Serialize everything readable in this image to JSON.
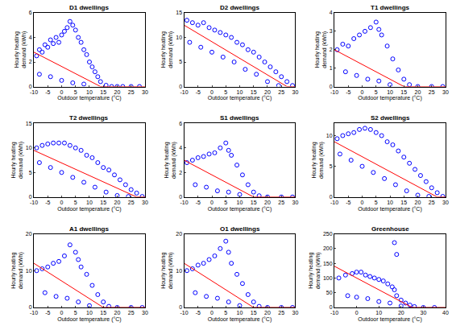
{
  "chart_data": [
    {
      "type": "scatter",
      "title": "D1 dwellings",
      "x_label": "Outdoor temperature (°C)",
      "y_label": "Hourly heating demand (kWh)",
      "xlim": [
        -10,
        30
      ],
      "xticks": [
        -10,
        -5,
        0,
        5,
        10,
        15,
        20,
        25,
        30
      ],
      "ylim": [
        0,
        6
      ],
      "yticks": [
        0,
        2,
        4,
        6
      ],
      "grid": false,
      "series": [
        {
          "type": "scatter",
          "marker": "circle-open",
          "color": "#0000ff",
          "x": [
            -9,
            -8,
            -7,
            -6,
            -5,
            -4,
            -3,
            -2,
            -1,
            0,
            1,
            2,
            3,
            4,
            5,
            6,
            7,
            8,
            9,
            10,
            11,
            12,
            13,
            14,
            16,
            18,
            20,
            22,
            25,
            28,
            -8,
            -4,
            0,
            4,
            8
          ],
          "values": [
            2.5,
            3,
            2.8,
            3.4,
            3.2,
            3.8,
            3.5,
            4,
            3.6,
            4.2,
            4.5,
            4.8,
            5.3,
            5,
            4.6,
            4,
            3.6,
            3,
            2.6,
            2,
            1.6,
            1.2,
            0.8,
            0.4,
            0.1,
            0,
            0,
            0,
            0,
            0,
            1,
            0.8,
            0.5,
            0.3,
            0.2
          ]
        },
        {
          "type": "line",
          "line_style": "solid",
          "color": "#ff0000",
          "x": [
            -10,
            14,
            30
          ],
          "values": [
            2.8,
            0,
            0
          ]
        }
      ]
    },
    {
      "type": "scatter",
      "title": "D2 dwellings",
      "x_label": "Outdoor temperature (°C)",
      "y_label": "Hourly heating demand (kWh)",
      "xlim": [
        -10,
        30
      ],
      "xticks": [
        -10,
        -5,
        0,
        5,
        10,
        15,
        20,
        25,
        30
      ],
      "ylim": [
        0,
        15
      ],
      "yticks": [
        0,
        5,
        10,
        15
      ],
      "grid": false,
      "series": [
        {
          "type": "scatter",
          "marker": "circle-open",
          "color": "#0000ff",
          "x": [
            -9,
            -7,
            -5,
            -3,
            -1,
            1,
            3,
            5,
            7,
            9,
            11,
            13,
            15,
            17,
            19,
            21,
            23,
            25,
            27,
            29,
            -8,
            -4,
            0,
            4,
            8,
            12,
            16,
            20,
            24
          ],
          "values": [
            13.5,
            13,
            12.5,
            13,
            12,
            11.5,
            11,
            10.5,
            10,
            9,
            8.5,
            7.5,
            7,
            6,
            5,
            4,
            3,
            2,
            1,
            0.2,
            9,
            8,
            7,
            6,
            5,
            3.5,
            2.5,
            1,
            0.2
          ]
        },
        {
          "type": "line",
          "line_style": "solid",
          "color": "#ff0000",
          "x": [
            -10,
            27,
            30
          ],
          "values": [
            12.5,
            0,
            0
          ]
        }
      ]
    },
    {
      "type": "scatter",
      "title": "T1 dwellings",
      "x_label": "Outdoor temperature (°C)",
      "y_label": "Hourly heating demand (kWh)",
      "xlim": [
        -10,
        30
      ],
      "xticks": [
        -10,
        -5,
        0,
        5,
        10,
        15,
        20,
        25,
        30
      ],
      "ylim": [
        0,
        4
      ],
      "yticks": [
        0,
        1,
        2,
        3,
        4
      ],
      "grid": false,
      "series": [
        {
          "type": "scatter",
          "marker": "circle-open",
          "color": "#0000ff",
          "x": [
            -9,
            -7,
            -5,
            -3,
            -1,
            1,
            3,
            5,
            6,
            7,
            9,
            11,
            13,
            15,
            17,
            20,
            25,
            29,
            -6,
            -2,
            2,
            6,
            10
          ],
          "values": [
            2,
            2.3,
            2.2,
            2.6,
            2.8,
            3,
            3.2,
            3.5,
            3.1,
            2.8,
            2.2,
            1.5,
            0.9,
            0.4,
            0.1,
            0,
            0,
            0,
            0.8,
            0.6,
            0.4,
            0.3,
            0.1
          ]
        },
        {
          "type": "line",
          "line_style": "solid",
          "color": "#ff0000",
          "x": [
            -10,
            15,
            30
          ],
          "values": [
            2,
            0,
            0
          ]
        }
      ]
    },
    {
      "type": "scatter",
      "title": "T2 dwellings",
      "x_label": "Outdoor temperature (°C)",
      "y_label": "Hourly heating demand (kWh)",
      "xlim": [
        -10,
        30
      ],
      "xticks": [
        -10,
        -5,
        0,
        5,
        10,
        15,
        20,
        25,
        30
      ],
      "ylim": [
        0,
        15
      ],
      "yticks": [
        0,
        5,
        10,
        15
      ],
      "grid": false,
      "series": [
        {
          "type": "scatter",
          "marker": "circle-open",
          "color": "#0000ff",
          "x": [
            -9,
            -7,
            -5,
            -3,
            -1,
            1,
            3,
            5,
            7,
            9,
            11,
            13,
            15,
            17,
            19,
            21,
            23,
            25,
            27,
            29,
            -8,
            -4,
            0,
            4,
            8,
            12,
            16,
            20,
            24
          ],
          "values": [
            10,
            10.5,
            10.8,
            11,
            11,
            11,
            10.5,
            10,
            9.5,
            8.5,
            8,
            7,
            6,
            5.5,
            4.5,
            3.5,
            2.5,
            1.5,
            0.8,
            0.1,
            7,
            6,
            5,
            4,
            3,
            2,
            1,
            0.3,
            0.1
          ]
        },
        {
          "type": "line",
          "line_style": "solid",
          "color": "#ff0000",
          "x": [
            -10,
            27,
            30
          ],
          "values": [
            9.5,
            0,
            0
          ]
        }
      ]
    },
    {
      "type": "scatter",
      "title": "S1 dwellings",
      "x_label": "Outdoor temperature (°C)",
      "y_label": "Hourly heating demand (kWh)",
      "xlim": [
        -10,
        30
      ],
      "xticks": [
        -10,
        -5,
        0,
        5,
        10,
        15,
        20,
        25,
        30
      ],
      "ylim": [
        0,
        6
      ],
      "yticks": [
        0,
        2,
        4,
        6
      ],
      "grid": false,
      "series": [
        {
          "type": "scatter",
          "marker": "circle-open",
          "color": "#0000ff",
          "x": [
            -9,
            -7,
            -5,
            -3,
            -1,
            1,
            3,
            5,
            6,
            7,
            9,
            11,
            13,
            15,
            17,
            20,
            25,
            29,
            -6,
            -2,
            2,
            6,
            10
          ],
          "values": [
            2.8,
            3,
            3.2,
            3.3,
            3.5,
            3.6,
            4,
            4.4,
            3.8,
            3.4,
            2.6,
            1.8,
            1,
            0.4,
            0.1,
            0,
            0,
            0,
            1,
            0.8,
            0.5,
            0.4,
            0.2
          ]
        },
        {
          "type": "line",
          "line_style": "solid",
          "color": "#ff0000",
          "x": [
            -10,
            15,
            30
          ],
          "values": [
            3,
            0,
            0
          ]
        }
      ]
    },
    {
      "type": "scatter",
      "title": "S2 dwellings",
      "x_label": "Outdoor temperature (°C)",
      "y_label": "Hourly heating demand (kWh)",
      "xlim": [
        -10,
        30
      ],
      "xticks": [
        -10,
        -5,
        0,
        5,
        10,
        15,
        20,
        25,
        30
      ],
      "ylim": [
        0,
        12
      ],
      "yticks": [
        0,
        5,
        10
      ],
      "grid": false,
      "series": [
        {
          "type": "scatter",
          "marker": "circle-open",
          "color": "#0000ff",
          "x": [
            -9,
            -7,
            -5,
            -3,
            -1,
            1,
            3,
            5,
            7,
            9,
            11,
            13,
            15,
            17,
            19,
            21,
            23,
            25,
            27,
            29,
            -8,
            -4,
            0,
            4,
            8,
            12,
            16,
            20,
            24
          ],
          "values": [
            9.5,
            10,
            10.3,
            10.5,
            11,
            11.2,
            11,
            10.5,
            10,
            9,
            8.5,
            7.5,
            6.5,
            5.5,
            4.5,
            3.5,
            2.5,
            1.5,
            0.7,
            0.1,
            7,
            6,
            5,
            4,
            3,
            2,
            1,
            0.3,
            0.1
          ]
        },
        {
          "type": "line",
          "line_style": "solid",
          "color": "#ff0000",
          "x": [
            -10,
            27,
            30
          ],
          "values": [
            9,
            0,
            0
          ]
        }
      ]
    },
    {
      "type": "scatter",
      "title": "A1 dwellings",
      "x_label": "Outdoor temperature (°C)",
      "y_label": "Hourly heating demand (kWh)",
      "xlim": [
        -10,
        30
      ],
      "xticks": [
        -10,
        -5,
        0,
        5,
        10,
        15,
        20,
        25,
        30
      ],
      "ylim": [
        0,
        20
      ],
      "yticks": [
        0,
        10,
        20
      ],
      "grid": false,
      "series": [
        {
          "type": "scatter",
          "marker": "circle-open",
          "color": "#0000ff",
          "x": [
            -9,
            -7,
            -5,
            -3,
            -1,
            1,
            3,
            5,
            6,
            7,
            9,
            11,
            13,
            15,
            17,
            20,
            25,
            29,
            -6,
            -2,
            2,
            6,
            10
          ],
          "values": [
            10,
            10.5,
            11,
            12,
            12.5,
            14,
            17,
            15,
            13,
            11,
            9,
            6,
            3.5,
            1.5,
            0.3,
            0,
            0,
            0,
            4,
            3,
            2.5,
            1.5,
            0.5
          ]
        },
        {
          "type": "line",
          "line_style": "solid",
          "color": "#ff0000",
          "x": [
            -10,
            15,
            30
          ],
          "values": [
            12,
            0,
            0
          ]
        }
      ]
    },
    {
      "type": "scatter",
      "title": "O1 dwellings",
      "x_label": "Outdoor temperature (°C)",
      "y_label": "Hourly heating demand (kWh)",
      "xlim": [
        -10,
        30
      ],
      "xticks": [
        -10,
        -5,
        0,
        5,
        10,
        15,
        20,
        25,
        30
      ],
      "ylim": [
        0,
        20
      ],
      "yticks": [
        0,
        10,
        20
      ],
      "grid": false,
      "series": [
        {
          "type": "scatter",
          "marker": "circle-open",
          "color": "#0000ff",
          "x": [
            -9,
            -7,
            -5,
            -3,
            -1,
            1,
            3,
            5,
            6,
            7,
            9,
            11,
            13,
            15,
            17,
            20,
            25,
            29,
            -6,
            -2,
            2,
            6,
            10
          ],
          "values": [
            10,
            10.5,
            11.5,
            12,
            13,
            14,
            16,
            18,
            15,
            12,
            9,
            6.5,
            3.5,
            1.5,
            0.3,
            0,
            0,
            0,
            4,
            3,
            2.5,
            1.5,
            0.5
          ]
        },
        {
          "type": "line",
          "line_style": "solid",
          "color": "#ff0000",
          "x": [
            -10,
            15,
            30
          ],
          "values": [
            12,
            0,
            0
          ]
        }
      ]
    },
    {
      "type": "scatter",
      "title": "Greenhouse",
      "x_label": "Outdoor temperature (°C)",
      "y_label": "Hourly heating demand (kWh)",
      "xlim": [
        -10,
        40
      ],
      "xticks": [
        -10,
        0,
        10,
        20,
        30,
        40
      ],
      "ylim": [
        0,
        250
      ],
      "yticks": [
        0,
        50,
        100,
        150,
        200,
        250
      ],
      "grid": false,
      "series": [
        {
          "type": "scatter",
          "marker": "circle-open",
          "color": "#0000ff",
          "x": [
            -8,
            -5,
            -2,
            0,
            2,
            4,
            6,
            8,
            10,
            12,
            14,
            16,
            17,
            18,
            20,
            22,
            24,
            26,
            30,
            35,
            -4,
            0,
            5,
            10,
            15,
            20,
            17,
            18
          ],
          "values": [
            100,
            110,
            115,
            120,
            120,
            110,
            105,
            100,
            95,
            90,
            80,
            70,
            60,
            40,
            25,
            15,
            8,
            3,
            0,
            0,
            40,
            35,
            30,
            20,
            15,
            5,
            220,
            180
          ]
        },
        {
          "type": "line",
          "line_style": "solid",
          "color": "#ff0000",
          "x": [
            -10,
            25,
            40
          ],
          "values": [
            140,
            0,
            0
          ]
        }
      ]
    }
  ]
}
